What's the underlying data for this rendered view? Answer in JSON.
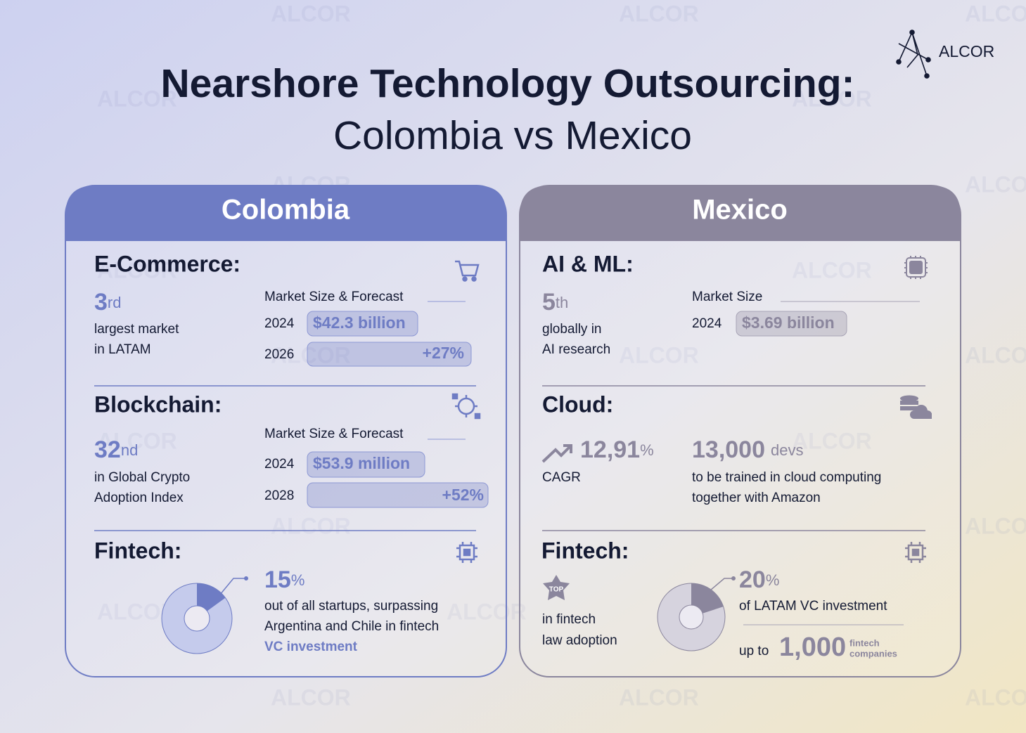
{
  "brand": "ALCOR",
  "header": {
    "title": "Nearshore Technology Outsourcing:",
    "subtitle": "Colombia vs Mexico"
  },
  "colombia": {
    "name": "Colombia",
    "ecommerce": {
      "label": "E-Commerce:",
      "rank": "3",
      "rank_suffix": "rd",
      "lines": [
        "largest market",
        "in LATAM"
      ],
      "forecast_label": "Market Size & Forecast",
      "rows": [
        {
          "year": "2024",
          "value": "$42.3 billion"
        },
        {
          "year": "2026",
          "value": "+27%"
        }
      ]
    },
    "blockchain": {
      "label": "Blockchain:",
      "rank": "32",
      "rank_suffix": "nd",
      "lines": [
        "in Global Crypto",
        "Adoption Index"
      ],
      "forecast_label": "Market Size & Forecast",
      "rows": [
        {
          "year": "2024",
          "value": "$53.9 million"
        },
        {
          "year": "2028",
          "value": "+52%"
        }
      ]
    },
    "fintech": {
      "label": "Fintech:",
      "share": 15,
      "unit": "%",
      "lines": [
        "out of all startups, surpassing",
        "Argentina and Chile in fintech"
      ],
      "highlight": "VC investment"
    }
  },
  "mexico": {
    "name": "Mexico",
    "ai": {
      "label": "AI & ML:",
      "rank": "5",
      "rank_suffix": "th",
      "lines": [
        "globally in",
        "AI research"
      ],
      "market_label": "Market Size",
      "rows": [
        {
          "year": "2024",
          "value": "$3.69 billion"
        }
      ]
    },
    "cloud": {
      "label": "Cloud:",
      "cagr": "12,91",
      "cagr_unit": "%",
      "cagr_label": "CAGR",
      "devs": "13,000",
      "devs_unit": "devs",
      "lines": [
        "to be trained in cloud computing",
        "together with Amazon"
      ]
    },
    "fintech": {
      "label": "Fintech:",
      "badge": "TOP",
      "lines": [
        "in fintech",
        "law adoption"
      ],
      "share": 20,
      "unit": "%",
      "share_text": "of LATAM VC investment",
      "up_to": "up to",
      "count": "1,000",
      "count_unit": [
        "fintech",
        "companies"
      ]
    }
  }
}
